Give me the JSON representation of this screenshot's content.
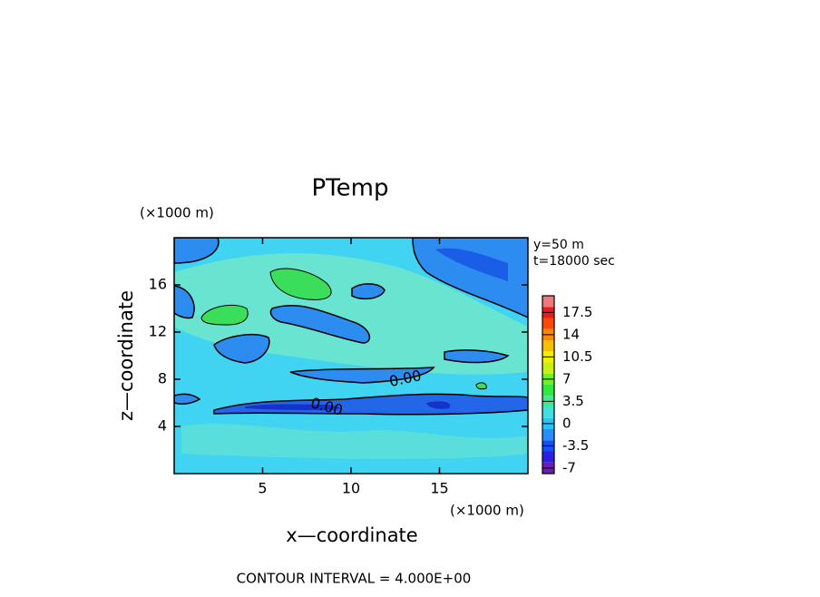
{
  "chart_data": {
    "type": "contour",
    "title": "PTemp",
    "x_label": "x—coordinate",
    "y_label": "z—coordinate",
    "x_unit": "(×1000 m)",
    "y_unit": "(×1000 m)",
    "info": [
      "y=50 m",
      "t=18000 sec"
    ],
    "footer": "CONTOUR INTERVAL = 4.000E+00",
    "contour_labels": [
      "0.00",
      "0.00"
    ],
    "xlim": [
      0,
      20
    ],
    "xticks": [
      5,
      10,
      15
    ],
    "ylim": [
      0,
      20
    ],
    "yticks": [
      4,
      8,
      12,
      16
    ],
    "colorbar": {
      "lim": [
        -7.875,
        20.125
      ],
      "ticks": [
        -7,
        -3.5,
        0,
        3.5,
        7,
        10.5,
        14,
        17.5
      ],
      "colors": [
        "#6a1fb0",
        "#2a20e8",
        "#1450ff",
        "#2a8cff",
        "#24c4ff",
        "#3fe0e0",
        "#40e890",
        "#30e840",
        "#70f020",
        "#c8f010",
        "#f0f000",
        "#f8c000",
        "#ff8800",
        "#ff4800",
        "#f01818",
        "#f07878"
      ]
    }
  }
}
